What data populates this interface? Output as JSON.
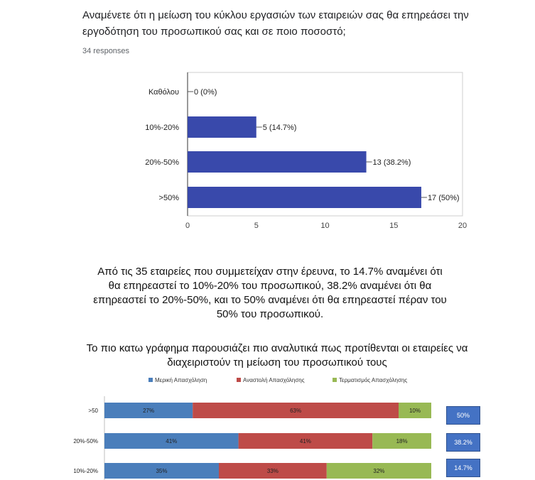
{
  "question": "Αναμένετε ότι η μείωση του κύκλου εργασιών των εταιρειών σας θα επηρεάσει την εργοδότηση του προσωπικού σας και σε ποιο ποσοστό;",
  "responses": "34 responses",
  "summary_text": "Από τις 35 εταιρείες που συμμετείχαν στην έρευνα, το 14.7% αναμένει ότι θα επηρεαστεί το 10%-20% του προσωπικού, 38.2% αναμένει ότι θα επηρεαστεί το 20%-50%, και το 50% αναμένει ότι θα επηρεαστεί πέραν του 50% του προσωπικού.",
  "intro_text": "Το πιο κατω γράφημα παρουσιάζει πιο αναλυτικά πως προτίθενται οι εταιρείες να διαχειριστούν τη μείωση του προσωπικού τους",
  "colors": {
    "bar_blue": "#3949ab",
    "series_blue": "#4a7ebb",
    "series_red": "#be4b48",
    "series_green": "#98b954",
    "box_blue": "#4472c4"
  },
  "chart_data": [
    {
      "type": "bar",
      "orientation": "horizontal",
      "categories": [
        "Καθόλου",
        "10%-20%",
        "20%-50%",
        ">50%"
      ],
      "values": [
        0,
        5,
        13,
        17
      ],
      "labels": [
        "0 (0%)",
        "5 (14.7%)",
        "13 (38.2%)",
        "17 (50%)"
      ],
      "xlim": [
        0,
        20
      ],
      "xticks": [
        0,
        5,
        10,
        15,
        20
      ],
      "grid": false
    },
    {
      "type": "bar",
      "orientation": "horizontal",
      "stacked": "percent",
      "categories": [
        ">50",
        "20%-50%",
        "10%-20%"
      ],
      "series": [
        {
          "name": "Μερική Απασχόληση",
          "values": [
            27,
            41,
            35
          ],
          "labels": [
            "27%",
            "41%",
            "35%"
          ]
        },
        {
          "name": "Αναστολή Απασχόλησης",
          "values": [
            63,
            41,
            33
          ],
          "labels": [
            "63%",
            "41%",
            "33%"
          ]
        },
        {
          "name": "Τερματισμός Απασχόλησης",
          "values": [
            10,
            18,
            32
          ],
          "labels": [
            "10%",
            "18%",
            "32%"
          ]
        }
      ],
      "legend_position": "top",
      "side_boxes": [
        "50%",
        "38.2%",
        "14.7%"
      ]
    }
  ]
}
